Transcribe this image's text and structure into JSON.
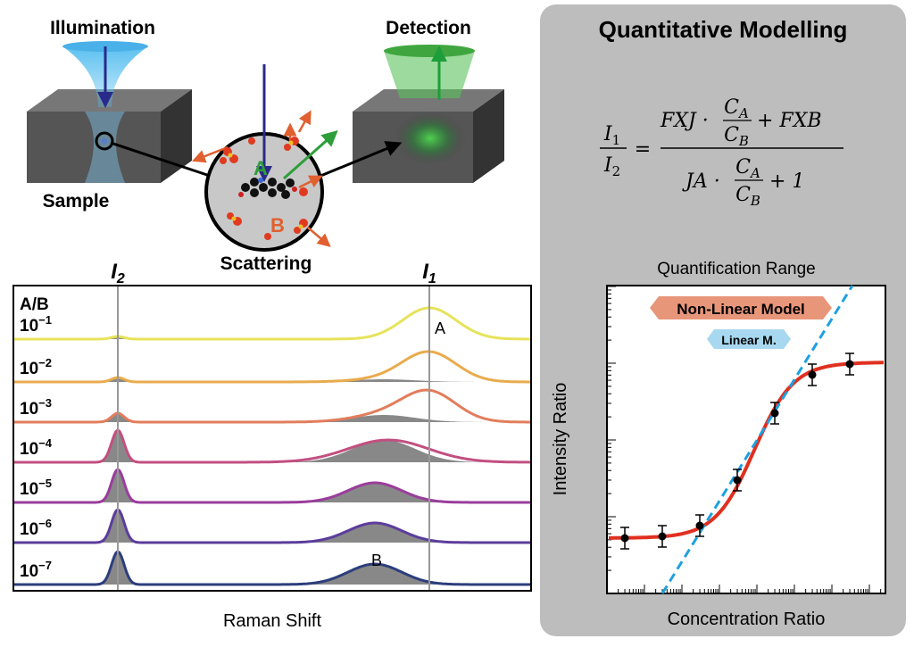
{
  "illustration": {
    "illumination": "Illumination",
    "detection": "Detection",
    "sample": "Sample",
    "scattering": "Scattering",
    "molecule_a": "A",
    "molecule_b": "B"
  },
  "spectra": {
    "peak_labels": [
      {
        "base": "I",
        "sub": "2"
      },
      {
        "base": "I",
        "sub": "1"
      }
    ],
    "ratio_header": "A/B",
    "rows": [
      {
        "base": "10",
        "exp": "−1"
      },
      {
        "base": "10",
        "exp": "−2"
      },
      {
        "base": "10",
        "exp": "−3"
      },
      {
        "base": "10",
        "exp": "−4"
      },
      {
        "base": "10",
        "exp": "−5"
      },
      {
        "base": "10",
        "exp": "−6"
      },
      {
        "base": "10",
        "exp": "−7"
      }
    ],
    "band_a": "A",
    "band_b": "B",
    "x_label": "Raman Shift"
  },
  "modelling": {
    "title": "Quantitative Modelling",
    "equation": {
      "lhs_num": {
        "base": "I",
        "sub": "1"
      },
      "lhs_den": {
        "base": "I",
        "sub": "2"
      },
      "equals": "=",
      "num_pre": "FXJ ·",
      "num_post": "+ FXB",
      "den_pre": "JA ·",
      "den_post": "+ 1",
      "frac_num": {
        "base": "C",
        "sub": "A"
      },
      "frac_den": {
        "base": "C",
        "sub": "B"
      }
    },
    "plot_title": "Quantification Range",
    "nonlinear": "Non-Linear Model",
    "linear": "Linear M.",
    "y_label": "Intensity Ratio",
    "x_label": "Concentration Ratio"
  }
}
